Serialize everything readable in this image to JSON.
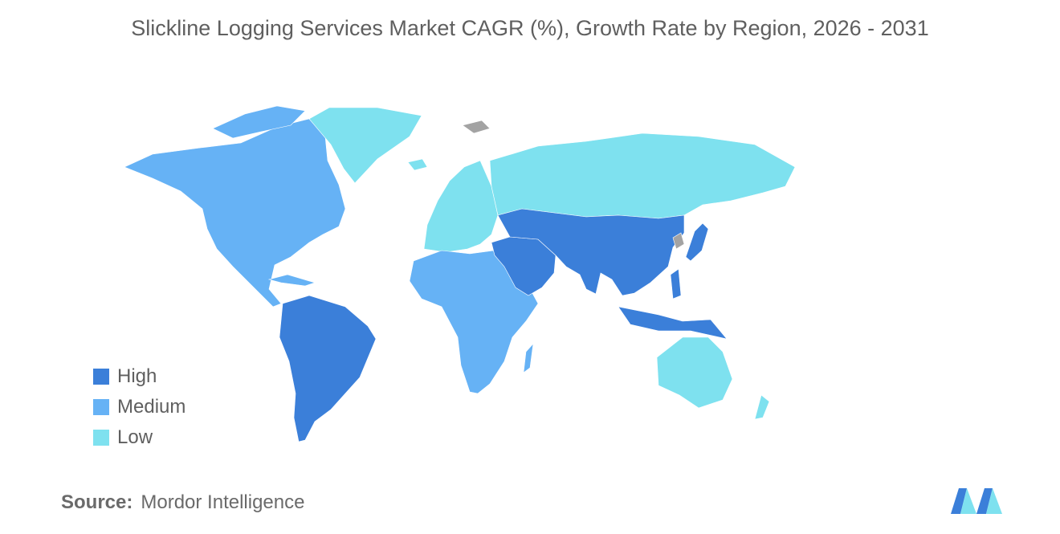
{
  "title": "Slickline Logging Services Market CAGR (%), Growth Rate by Region, 2026 - 2031",
  "colors": {
    "high": "#3b7fd9",
    "medium": "#66b2f5",
    "low": "#7ee1ef",
    "no_data": "#a3a3a3",
    "text": "#5f5f5f"
  },
  "legend": {
    "items": [
      {
        "label": "High",
        "color": "#3b7fd9"
      },
      {
        "label": "Medium",
        "color": "#66b2f5"
      },
      {
        "label": "Low",
        "color": "#7ee1ef"
      }
    ]
  },
  "regions": [
    {
      "name": "North America",
      "category": "Medium"
    },
    {
      "name": "Greenland",
      "category": "Low"
    },
    {
      "name": "South America",
      "category": "High"
    },
    {
      "name": "Europe",
      "category": "Low"
    },
    {
      "name": "Russia",
      "category": "Low"
    },
    {
      "name": "Africa",
      "category": "Medium"
    },
    {
      "name": "Middle East",
      "category": "High"
    },
    {
      "name": "Asia",
      "category": "High"
    },
    {
      "name": "Australia & New Zealand",
      "category": "Low"
    }
  ],
  "source": {
    "label": "Source:",
    "value": "Mordor Intelligence"
  },
  "logo": {
    "icon": "mordor-intelligence-logo-icon"
  }
}
